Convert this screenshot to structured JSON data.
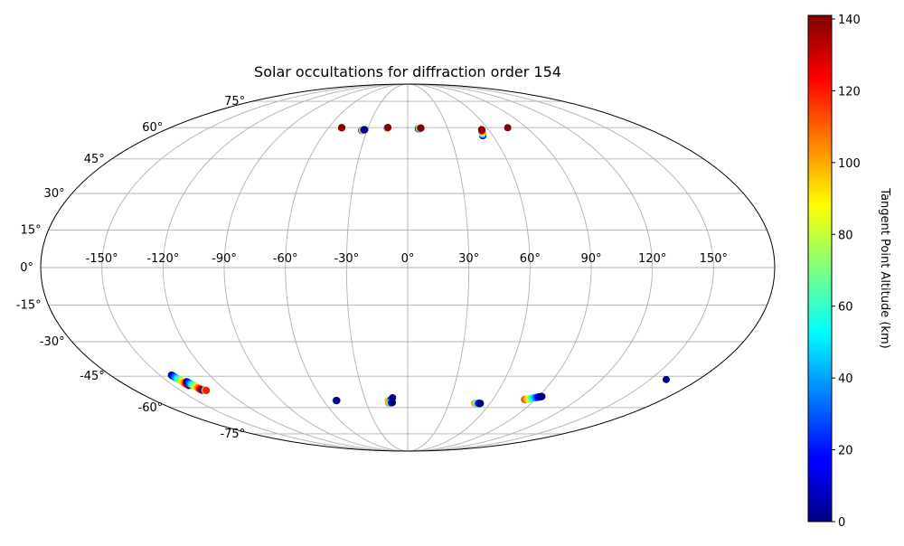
{
  "chart_data": {
    "type": "scatter",
    "projection": "mollweide",
    "title": "Solar occultations for diffraction order 154",
    "xlabel": "",
    "ylabel": "",
    "grid": true,
    "x_ticks": [
      "-150°",
      "-120°",
      "-90°",
      "-60°",
      "-30°",
      "0°",
      "30°",
      "60°",
      "90°",
      "120°",
      "150°"
    ],
    "x_tick_values": [
      -150,
      -120,
      -90,
      -60,
      -30,
      0,
      30,
      60,
      90,
      120,
      150
    ],
    "y_ticks": [
      "75°",
      "60°",
      "45°",
      "30°",
      "15°",
      "0°",
      "-15°",
      "-30°",
      "-45°",
      "-60°",
      "-75°"
    ],
    "y_tick_values": [
      75,
      60,
      45,
      30,
      15,
      0,
      -15,
      -30,
      -45,
      -60,
      -75
    ],
    "colorbar": {
      "label": "Tangent Point Altitude (km)",
      "min": 0,
      "max": 141,
      "ticks": [
        0,
        20,
        40,
        60,
        80,
        100,
        120,
        140
      ],
      "tick_labels": [
        "0",
        "20",
        "40",
        "60",
        "80",
        "100",
        "120",
        "140"
      ],
      "colormap": "jet"
    },
    "occultations": [
      {
        "lon": [
          -50,
          -50
        ],
        "lat": [
          60,
          60
        ],
        "alt": [
          0,
          140
        ]
      },
      {
        "lon": [
          -34,
          -33.5,
          -33,
          -32.5,
          -32
        ],
        "lat": [
          58.6,
          58.7,
          58.8,
          58.9,
          59
        ],
        "alt": [
          140,
          105,
          70,
          35,
          0
        ]
      },
      {
        "lon": [
          -15.5,
          -15
        ],
        "lat": [
          59.8,
          60.1
        ],
        "alt": [
          0,
          140
        ]
      },
      {
        "lon": [
          8,
          9,
          10
        ],
        "lat": [
          59.4,
          59.6,
          59.8
        ],
        "alt": [
          0,
          70,
          140
        ]
      },
      {
        "lon": [
          53,
          53.4,
          53.8,
          54.2,
          54.6,
          55
        ],
        "lat": [
          56,
          56.6,
          57.2,
          57.8,
          58.4,
          59
        ],
        "alt": [
          0,
          28,
          56,
          84,
          112,
          140
        ]
      },
      {
        "lon": [
          75.8
        ],
        "lat": [
          60
        ],
        "alt": [
          140
        ]
      },
      {
        "lon": [
          -143,
          -142.5,
          -142,
          -141.5,
          -141,
          -140.5,
          -140
        ],
        "lat": [
          -44.5,
          -45.3,
          -46.1,
          -46.9,
          -47.7,
          -48.5,
          -49.3
        ],
        "alt": [
          0,
          23,
          46,
          70,
          93,
          117,
          140
        ]
      },
      {
        "lon": [
          -138.5,
          -137.9,
          -137.3,
          -136.7,
          -136.1,
          -135.5
        ],
        "lat": [
          -47.5,
          -48.3,
          -49.1,
          -49.9,
          -50.7,
          -51.5
        ],
        "alt": [
          0,
          28,
          56,
          84,
          112,
          140
        ]
      },
      {
        "lon": [
          -134,
          -133
        ],
        "lat": [
          -51.4,
          -51.6
        ],
        "alt": [
          0,
          120
        ]
      },
      {
        "lon": [
          -51.3,
          -50.5
        ],
        "lat": [
          -56.5,
          -56.5
        ],
        "alt": [
          100,
          0
        ]
      },
      {
        "lon": [
          -13.6,
          -12.4,
          -11.3
        ],
        "lat": [
          -56.4,
          -56.3,
          -56.2
        ],
        "alt": [
          110,
          60,
          0
        ]
      },
      {
        "lon": [
          -13.7,
          -12.4,
          -11.1
        ],
        "lat": [
          -57.7,
          -57.6,
          -57.5
        ],
        "alt": [
          120,
          60,
          0
        ]
      },
      {
        "lon": [
          -10.5
        ],
        "lat": [
          -55.1
        ],
        "alt": [
          0
        ]
      },
      {
        "lon": [
          49,
          51,
          53
        ],
        "lat": [
          -57.9,
          -57.9,
          -57.9
        ],
        "alt": [
          120,
          50,
          0
        ]
      },
      {
        "lon": [
          82.5,
          84.5,
          86.5,
          88.5,
          90.5,
          92.5
        ],
        "lat": [
          -56,
          -55.7,
          -55.4,
          -55.1,
          -54.8,
          -54.5
        ],
        "alt": [
          120,
          95,
          70,
          45,
          20,
          0
        ]
      },
      {
        "lon": [
          160
        ],
        "lat": [
          -46.5
        ],
        "alt": [
          0
        ]
      }
    ]
  }
}
